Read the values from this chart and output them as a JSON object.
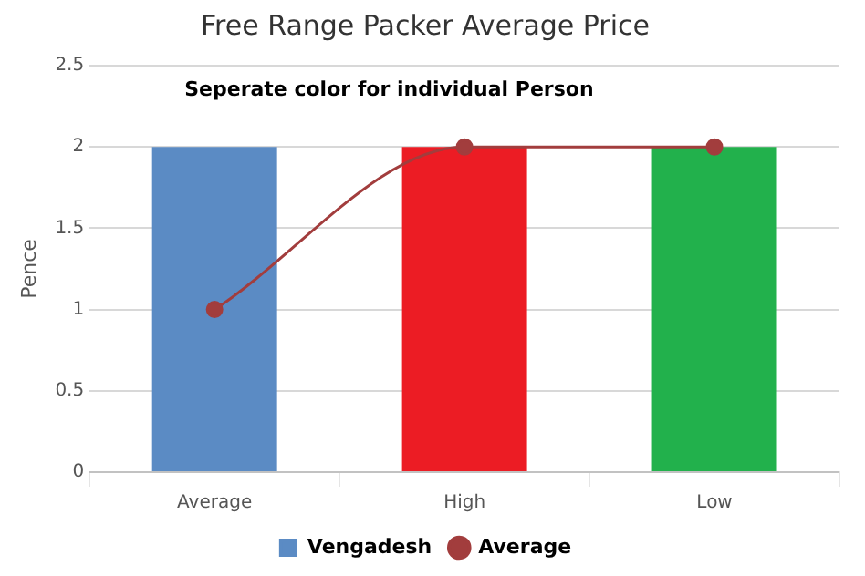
{
  "chart_data": {
    "type": "bar",
    "title": "Free Range Packer Average Price",
    "ylabel": "Pence",
    "categories": [
      "Average",
      "High",
      "Low"
    ],
    "series": [
      {
        "name": "Vengadesh",
        "color": "#5b8bc4",
        "colors": [
          "#5b8bc4",
          "#ec1c24",
          "#22b14c"
        ],
        "values": [
          2,
          2,
          2
        ]
      },
      {
        "name": "Average",
        "type": "line",
        "color": "#a23d3d",
        "values": [
          1,
          2,
          2
        ],
        "marker": "circle"
      }
    ],
    "ylim": [
      0,
      2.5
    ],
    "yticks": [
      0,
      0.5,
      1,
      1.5,
      2,
      2.5
    ],
    "grid": "y",
    "legend": "bottom",
    "annotations": [
      "Seperate color for individual Person"
    ]
  }
}
